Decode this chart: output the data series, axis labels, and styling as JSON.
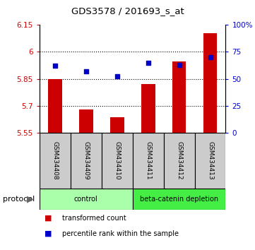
{
  "title": "GDS3578 / 201693_s_at",
  "samples": [
    "GSM434408",
    "GSM434409",
    "GSM434410",
    "GSM434411",
    "GSM434412",
    "GSM434413"
  ],
  "red_values": [
    5.848,
    5.678,
    5.635,
    5.822,
    5.948,
    6.105
  ],
  "blue_pct": [
    62,
    57,
    52,
    65,
    63,
    70
  ],
  "ylim_left": [
    5.55,
    6.15
  ],
  "ylim_right": [
    0,
    100
  ],
  "yticks_left": [
    5.55,
    5.7,
    5.85,
    6.0,
    6.15
  ],
  "yticks_right": [
    0,
    25,
    50,
    75,
    100
  ],
  "ytick_labels_left": [
    "5.55",
    "5.7",
    "5.85",
    "6",
    "6.15"
  ],
  "ytick_labels_right": [
    "0",
    "25",
    "50",
    "75",
    "100%"
  ],
  "bar_bottom": 5.55,
  "bar_color": "#cc0000",
  "dot_color": "#0000cc",
  "bar_width": 0.45,
  "groups": [
    {
      "label": "control",
      "indices": [
        0,
        1,
        2
      ],
      "color": "#aaffaa"
    },
    {
      "label": "beta-catenin depletion",
      "indices": [
        3,
        4,
        5
      ],
      "color": "#44ee44"
    }
  ],
  "protocol_label": "protocol",
  "legend_items": [
    {
      "color": "#cc0000",
      "label": "transformed count"
    },
    {
      "color": "#0000cc",
      "label": "percentile rank within the sample"
    }
  ],
  "sample_box_color": "#cccccc",
  "grid_ticks": [
    5.7,
    5.85,
    6.0
  ]
}
